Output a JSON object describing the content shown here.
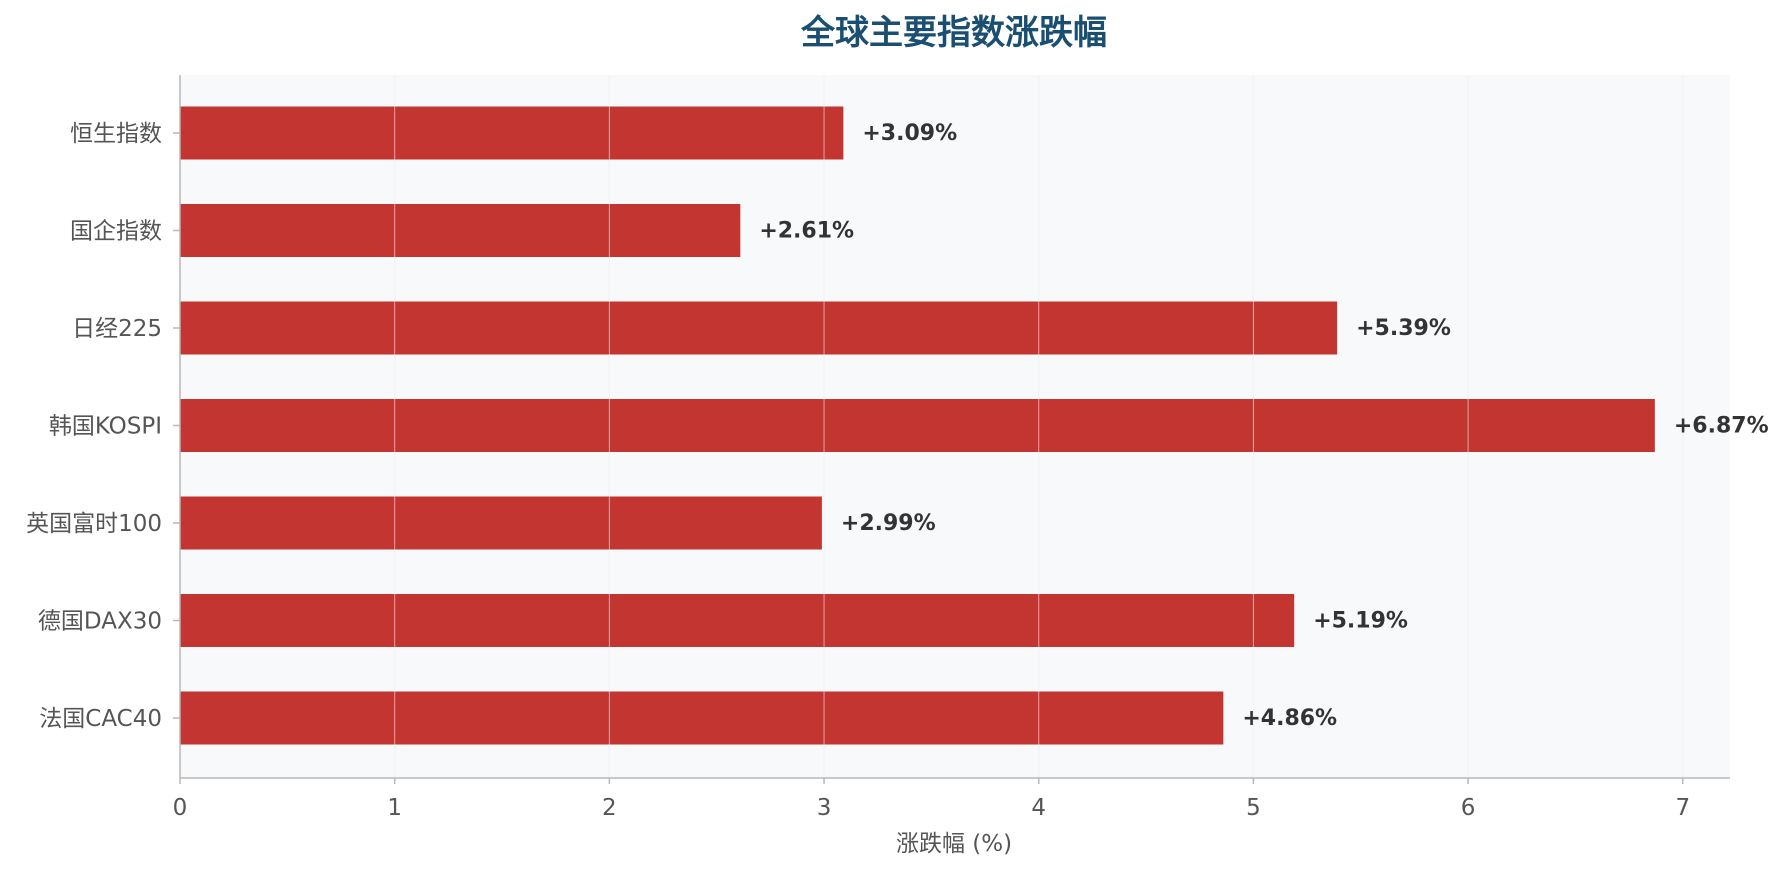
{
  "chart_data": {
    "type": "bar",
    "orientation": "horizontal",
    "title": "全球主要指数涨跌幅",
    "xlabel": "涨跌幅 (%)",
    "ylabel": "",
    "categories": [
      "恒生指数",
      "国企指数",
      "日经225",
      "韩国KOSPI",
      "英国富时100",
      "德国DAX30",
      "法国CAC40"
    ],
    "values": [
      3.09,
      2.61,
      5.39,
      6.87,
      2.99,
      5.19,
      4.86
    ],
    "data_labels": [
      "+3.09%",
      "+2.61%",
      "+5.39%",
      "+6.87%",
      "+2.99%",
      "+5.19%",
      "+4.86%"
    ],
    "xlim": [
      0,
      7.22
    ],
    "xticks": [
      "0",
      "1",
      "2",
      "3",
      "4",
      "5",
      "6",
      "7"
    ],
    "grid": "vertical",
    "colors": {
      "bar": "#c23531",
      "title": "#1b4f72",
      "plot_bg": "#f8f9fb",
      "grid": "#e3e6ea",
      "axis": "#b8b8b8",
      "tick_text": "#555555",
      "label_text": "#333333"
    }
  }
}
